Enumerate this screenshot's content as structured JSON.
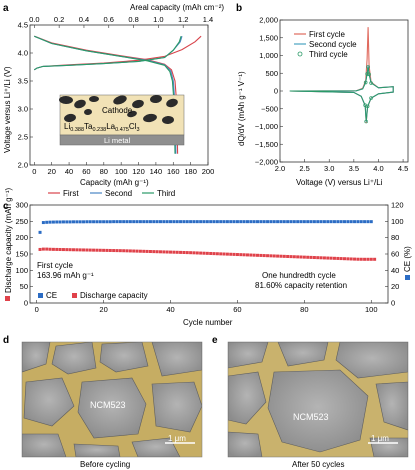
{
  "panels": {
    "a": {
      "letter": "a",
      "top_axis_label": "Areal capacity (mAh cm⁻²)",
      "top_ticks": [
        "0.0",
        "0.2",
        "0.4",
        "0.6",
        "0.8",
        "1.0",
        "1.2",
        "1.4"
      ],
      "xlabel": "Capacity (mAh g⁻¹)",
      "x_ticks": [
        "0",
        "20",
        "40",
        "60",
        "80",
        "100",
        "120",
        "140",
        "160",
        "180",
        "200"
      ],
      "ylabel": "Voltage versus Li⁺/Li (V)",
      "y_ticks": [
        "2.0",
        "2.5",
        "3.0",
        "3.5",
        "4.0",
        "4.5"
      ],
      "inset": {
        "cathode_label": "Cathode",
        "electrolyte_formula": "Li0.388Ta0.238La0.475Cl3",
        "electrolyte_parts": [
          "Li",
          "0.388",
          "Ta",
          "0.238",
          "La",
          "0.475",
          "Cl",
          "3"
        ],
        "anode_label": "Li metal"
      },
      "legend": [
        "First",
        "Second",
        "Third"
      ]
    },
    "b": {
      "letter": "b",
      "ylabel": "dQ/dV (mAh g⁻¹ V⁻¹)",
      "y_ticks": [
        "−2,000",
        "−1,500",
        "−1,000",
        "−500",
        "0",
        "500",
        "1,000",
        "1,500",
        "2,000"
      ],
      "x_ticks": [
        "2.0",
        "2.5",
        "3.0",
        "3.5",
        "4.0",
        "4.5"
      ],
      "xlabel": "Voltage (V) versus Li⁺/Li",
      "legend": [
        "First cycle",
        "Second cycle",
        "Third cycle"
      ]
    },
    "c": {
      "letter": "c",
      "ylabel_left": "Discharge capacity (mAh g⁻¹)",
      "y_ticks_left": [
        "0",
        "50",
        "100",
        "150",
        "200",
        "250",
        "300"
      ],
      "ylabel_right": "CE (%)",
      "y_ticks_right": [
        "0",
        "20",
        "40",
        "60",
        "80",
        "100",
        "120"
      ],
      "xlabel": "Cycle number",
      "x_ticks": [
        "0",
        "20",
        "40",
        "60",
        "80",
        "100"
      ],
      "annotation_first_line1": "First cycle",
      "annotation_first_line2": "163.96 mAh g⁻¹",
      "annotation_last_line1": "One hundredth cycle",
      "annotation_last_line2": "81.60% capacity retention",
      "legend": [
        "CE",
        "Discharge capacity"
      ]
    },
    "d": {
      "letter": "d",
      "particle_label": "NCM523",
      "scale_bar": "1 μm",
      "caption": "Before cycling"
    },
    "e": {
      "letter": "e",
      "particle_label": "NCM523",
      "scale_bar": "1 μm",
      "caption": "After 50 cycles"
    }
  },
  "colors": {
    "first": "#d8434b",
    "second": "#4a86c5",
    "third": "#2a9a67",
    "ce": "#2b6cc4",
    "capacity": "#e0424a",
    "cathode_bg": "#f1e2b6",
    "li_metal": "#8f8f8f"
  },
  "chart_data": [
    {
      "panel": "a",
      "type": "line",
      "xlabel": "Capacity (mAh g⁻¹)",
      "ylabel": "Voltage versus Li⁺/Li (V)",
      "xlim": [
        -5,
        200
      ],
      "ylim": [
        2.0,
        4.5
      ],
      "series": [
        {
          "name": "First",
          "charge": [
            [
              0,
              3.7
            ],
            [
              3,
              3.73
            ],
            [
              10,
              3.76
            ],
            [
              40,
              3.79
            ],
            [
              80,
              3.82
            ],
            [
              120,
              3.87
            ],
            [
              150,
              3.94
            ],
            [
              170,
              4.06
            ],
            [
              185,
              4.2
            ],
            [
              192,
              4.3
            ]
          ],
          "discharge": [
            [
              0,
              4.3
            ],
            [
              20,
              4.18
            ],
            [
              60,
              4.05
            ],
            [
              100,
              3.95
            ],
            [
              130,
              3.88
            ],
            [
              150,
              3.8
            ],
            [
              158,
              3.7
            ],
            [
              162,
              3.5
            ],
            [
              164,
              3.1
            ],
            [
              165,
              2.2
            ]
          ]
        },
        {
          "name": "Second",
          "charge": [
            [
              0,
              3.7
            ],
            [
              3,
              3.73
            ],
            [
              10,
              3.76
            ],
            [
              40,
              3.78
            ],
            [
              80,
              3.81
            ],
            [
              120,
              3.85
            ],
            [
              150,
              3.92
            ],
            [
              160,
              4.05
            ],
            [
              168,
              4.2
            ],
            [
              170,
              4.3
            ]
          ],
          "discharge": [
            [
              0,
              4.3
            ],
            [
              20,
              4.17
            ],
            [
              60,
              4.04
            ],
            [
              100,
              3.94
            ],
            [
              130,
              3.87
            ],
            [
              150,
              3.79
            ],
            [
              157,
              3.68
            ],
            [
              160,
              3.5
            ],
            [
              162,
              3.1
            ],
            [
              163,
              2.2
            ]
          ]
        },
        {
          "name": "Third",
          "charge": [
            [
              0,
              3.7
            ],
            [
              3,
              3.73
            ],
            [
              10,
              3.76
            ],
            [
              40,
              3.78
            ],
            [
              80,
              3.81
            ],
            [
              120,
              3.85
            ],
            [
              150,
              3.92
            ],
            [
              160,
              4.05
            ],
            [
              167,
              4.2
            ],
            [
              169,
              4.3
            ]
          ],
          "discharge": [
            [
              0,
              4.3
            ],
            [
              20,
              4.17
            ],
            [
              60,
              4.04
            ],
            [
              100,
              3.94
            ],
            [
              130,
              3.86
            ],
            [
              150,
              3.78
            ],
            [
              156,
              3.67
            ],
            [
              159,
              3.5
            ],
            [
              161,
              3.1
            ],
            [
              162,
              2.2
            ]
          ]
        }
      ]
    },
    {
      "panel": "b",
      "type": "line",
      "xlabel": "Voltage (V) versus Li⁺/Li",
      "ylabel": "dQ/dV (mAh g⁻¹ V⁻¹)",
      "xlim": [
        2.0,
        4.6
      ],
      "ylim": [
        -2000,
        2000
      ],
      "series": [
        {
          "name": "First cycle",
          "values": [
            [
              2.2,
              0
            ],
            [
              3.55,
              5
            ],
            [
              3.68,
              80
            ],
            [
              3.74,
              300
            ],
            [
              3.77,
              900
            ],
            [
              3.79,
              1800
            ],
            [
              3.81,
              700
            ],
            [
              3.85,
              250
            ],
            [
              4.0,
              90
            ],
            [
              4.3,
              120
            ],
            [
              4.3,
              -30
            ],
            [
              4.0,
              -80
            ],
            [
              3.85,
              -200
            ],
            [
              3.78,
              -450
            ],
            [
              3.75,
              -900
            ],
            [
              3.73,
              -420
            ],
            [
              3.65,
              -150
            ],
            [
              3.5,
              -40
            ],
            [
              2.2,
              0
            ]
          ]
        },
        {
          "name": "Second cycle",
          "values": [
            [
              2.2,
              0
            ],
            [
              3.55,
              5
            ],
            [
              3.68,
              60
            ],
            [
              3.74,
              250
            ],
            [
              3.77,
              500
            ],
            [
              3.79,
              700
            ],
            [
              3.81,
              480
            ],
            [
              3.85,
              230
            ],
            [
              4.0,
              90
            ],
            [
              4.3,
              120
            ],
            [
              4.3,
              -30
            ],
            [
              4.0,
              -80
            ],
            [
              3.85,
              -200
            ],
            [
              3.78,
              -440
            ],
            [
              3.75,
              -870
            ],
            [
              3.73,
              -410
            ],
            [
              3.65,
              -150
            ],
            [
              3.5,
              -40
            ],
            [
              2.2,
              0
            ]
          ]
        },
        {
          "name": "Third cycle",
          "values": [
            [
              2.2,
              0
            ],
            [
              3.55,
              5
            ],
            [
              3.68,
              60
            ],
            [
              3.74,
              240
            ],
            [
              3.77,
              480
            ],
            [
              3.79,
              680
            ],
            [
              3.81,
              470
            ],
            [
              3.85,
              225
            ],
            [
              4.0,
              90
            ],
            [
              4.3,
              120
            ],
            [
              4.3,
              -30
            ],
            [
              4.0,
              -80
            ],
            [
              3.85,
              -200
            ],
            [
              3.78,
              -430
            ],
            [
              3.75,
              -860
            ],
            [
              3.73,
              -400
            ],
            [
              3.65,
              -150
            ],
            [
              3.5,
              -40
            ],
            [
              2.2,
              0
            ]
          ]
        }
      ]
    },
    {
      "panel": "c",
      "type": "scatter",
      "xlabel": "Cycle number",
      "ylabel": "Discharge capacity (mAh g⁻¹)",
      "y2label": "CE (%)",
      "xlim": [
        -2,
        105
      ],
      "ylim": [
        0,
        300
      ],
      "y2lim": [
        0,
        120
      ],
      "series": [
        {
          "name": "Discharge capacity",
          "axis": "left",
          "start_cycle": 1,
          "values": [
            163.96,
            165,
            165,
            164.5,
            164.2,
            164,
            163.8,
            163.6,
            163.4,
            163.2,
            163,
            162.8,
            162.6,
            162.4,
            162.2,
            162,
            161.8,
            161.6,
            161.4,
            161.2,
            161,
            160.8,
            160.6,
            160.4,
            160.2,
            160,
            159.7,
            159.4,
            159.1,
            158.8,
            158.5,
            158.2,
            157.9,
            157.6,
            157.3,
            157,
            156.7,
            156.4,
            156.1,
            155.8,
            155.5,
            155.2,
            154.9,
            154.6,
            154.3,
            154,
            153.6,
            153.2,
            152.8,
            152.4,
            152,
            151.6,
            151.2,
            150.8,
            150.4,
            150,
            149.6,
            149.2,
            148.8,
            148.4,
            148,
            147.6,
            147.2,
            146.8,
            146.4,
            146,
            145.6,
            145.2,
            144.8,
            144.4,
            144,
            143.6,
            143.2,
            142.8,
            142.4,
            142,
            141.6,
            141.2,
            140.8,
            140.4,
            140,
            139.6,
            139.2,
            138.8,
            138.4,
            138,
            137.6,
            137.2,
            136.8,
            136.4,
            136,
            135.6,
            135.2,
            134.8,
            134.4,
            134,
            133.9,
            133.8,
            133.8,
            133.8,
            133.8
          ]
        },
        {
          "name": "CE",
          "axis": "right",
          "start_cycle": 1,
          "values": [
            86.5,
            98.5,
            98.8,
            99,
            99.1,
            99.2,
            99.2,
            99.3,
            99.3,
            99.3,
            99.4,
            99.4,
            99.4,
            99.4,
            99.5,
            99.5,
            99.5,
            99.5,
            99.5,
            99.5,
            99.5,
            99.5,
            99.6,
            99.6,
            99.6,
            99.6,
            99.6,
            99.6,
            99.6,
            99.6,
            99.6,
            99.6,
            99.6,
            99.6,
            99.6,
            99.6,
            99.6,
            99.6,
            99.6,
            99.6,
            99.6,
            99.6,
            99.6,
            99.6,
            99.6,
            99.6,
            99.6,
            99.6,
            99.6,
            99.6,
            99.6,
            99.6,
            99.6,
            99.6,
            99.6,
            99.6,
            99.6,
            99.6,
            99.6,
            99.6,
            99.6,
            99.6,
            99.6,
            99.6,
            99.6,
            99.6,
            99.6,
            99.6,
            99.6,
            99.6,
            99.6,
            99.6,
            99.6,
            99.6,
            99.6,
            99.6,
            99.6,
            99.6,
            99.6,
            99.6,
            99.6,
            99.6,
            99.6,
            99.6,
            99.6,
            99.6,
            99.6,
            99.6,
            99.6,
            99.6,
            99.6,
            99.6,
            99.6,
            99.6,
            99.6,
            99.6,
            99.6,
            99.6,
            99.6,
            99.6
          ]
        }
      ]
    }
  ]
}
